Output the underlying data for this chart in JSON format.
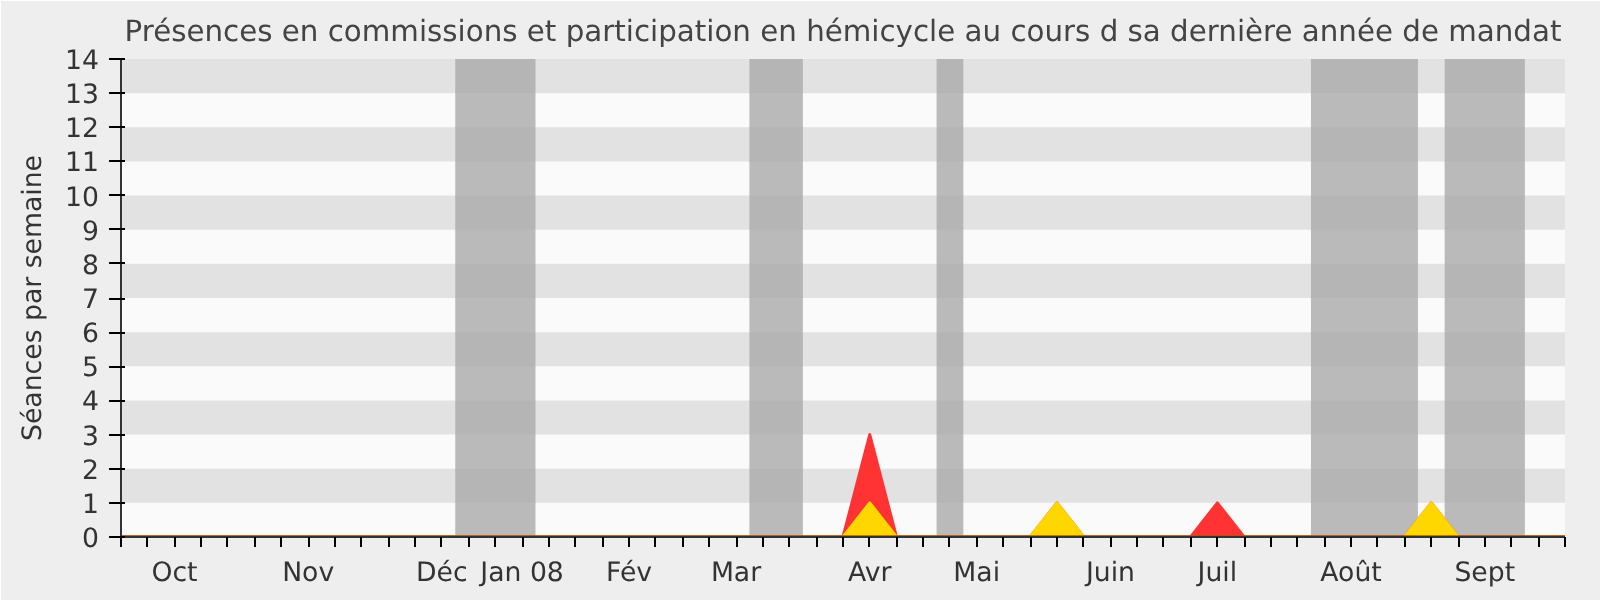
{
  "chart_data": {
    "type": "area",
    "title": "Présences en commissions et participation en hémicycle au cours d sa dernière année de mandat",
    "ylabel": "Séances par semaine",
    "categories": [
      null,
      null,
      "Oct",
      null,
      null,
      null,
      null,
      "Nov",
      null,
      null,
      null,
      null,
      "Déc",
      null,
      null,
      "Jan 08",
      null,
      null,
      null,
      "Fév",
      null,
      null,
      null,
      "Mar",
      null,
      null,
      null,
      null,
      "Avr",
      null,
      null,
      null,
      "Mai",
      null,
      null,
      null,
      null,
      "Juin",
      null,
      null,
      null,
      "Juil",
      null,
      null,
      null,
      null,
      "Août",
      null,
      null,
      null,
      null,
      "Sept",
      null,
      null,
      null
    ],
    "series": [
      {
        "color": "#ff3333",
        "values": [
          0,
          0,
          0,
          0,
          0,
          0,
          0,
          0,
          0,
          0,
          0,
          0,
          0,
          0,
          0,
          0,
          0,
          0,
          0,
          0,
          0,
          0,
          0,
          0,
          0,
          0,
          0,
          0,
          3,
          0,
          0,
          0,
          0,
          0,
          0,
          1,
          0,
          0,
          0,
          0,
          0,
          1,
          0,
          0,
          0,
          0,
          0,
          0,
          0,
          1,
          0,
          0,
          0,
          0,
          0
        ]
      },
      {
        "color": "#ffd700",
        "values": [
          0,
          0,
          0,
          0,
          0,
          0,
          0,
          0,
          0,
          0,
          0,
          0,
          0,
          0,
          0,
          0,
          0,
          0,
          0,
          0,
          0,
          0,
          0,
          0,
          0,
          0,
          0,
          0,
          1,
          0,
          0,
          0,
          0,
          0,
          0,
          1,
          0,
          0,
          0,
          0,
          0,
          0,
          0,
          0,
          0,
          0,
          0,
          0,
          0,
          1,
          0,
          0,
          0,
          0,
          0
        ]
      }
    ],
    "ylim": [
      0,
      14
    ],
    "yticks": [
      0,
      1,
      2,
      3,
      4,
      5,
      6,
      7,
      8,
      9,
      10,
      11,
      12,
      13,
      14
    ]
  }
}
